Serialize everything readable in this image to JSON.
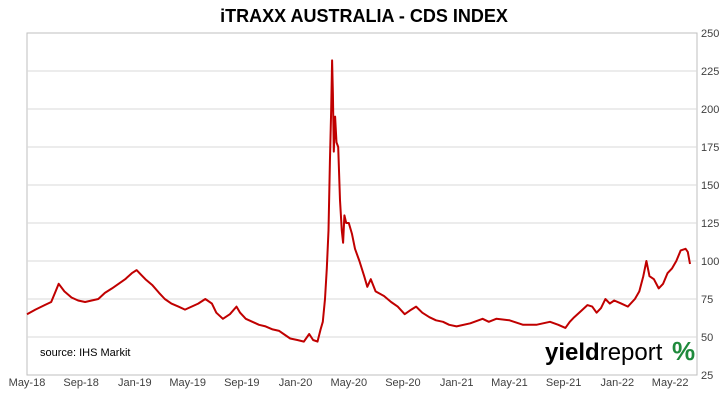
{
  "chart_data": {
    "type": "line",
    "title": "iTRAXX AUSTRALIA - CDS INDEX",
    "source_note": "source: IHS Markit",
    "logo": {
      "text_bold": "yield",
      "text_rest": "report",
      "symbol": "%"
    },
    "colors": {
      "line": "#c00000",
      "grid": "#d9d9d9",
      "text": "#404040",
      "logo_green": "#1f8a3c",
      "logo_red": "#c00000"
    },
    "x_axis": {
      "tick_labels": [
        "May-18",
        "Sep-18",
        "Jan-19",
        "May-19",
        "Sep-19",
        "Jan-20",
        "May-20",
        "Sep-20",
        "Jan-21",
        "May-21",
        "Sep-21",
        "Jan-22",
        "May-22"
      ],
      "range": [
        "2018-05-01",
        "2022-07-01"
      ]
    },
    "y_axis": {
      "position": "right",
      "tick_labels": [
        "25",
        "50",
        "75",
        "100",
        "125",
        "150",
        "175",
        "200",
        "225",
        "250"
      ],
      "range": [
        25,
        250
      ],
      "gridlines": true
    },
    "series": [
      {
        "values": [
          [
            "2018-05-01",
            65
          ],
          [
            "2018-05-20",
            68
          ],
          [
            "2018-06-10",
            71
          ],
          [
            "2018-06-25",
            73
          ],
          [
            "2018-07-05",
            80
          ],
          [
            "2018-07-12",
            85
          ],
          [
            "2018-07-25",
            80
          ],
          [
            "2018-08-10",
            76
          ],
          [
            "2018-08-25",
            74
          ],
          [
            "2018-09-10",
            73
          ],
          [
            "2018-09-25",
            74
          ],
          [
            "2018-10-10",
            75
          ],
          [
            "2018-10-25",
            79
          ],
          [
            "2018-11-10",
            82
          ],
          [
            "2018-11-25",
            85
          ],
          [
            "2018-12-10",
            88
          ],
          [
            "2018-12-25",
            92
          ],
          [
            "2019-01-05",
            94
          ],
          [
            "2019-01-15",
            91
          ],
          [
            "2019-01-25",
            88
          ],
          [
            "2019-02-10",
            84
          ],
          [
            "2019-02-25",
            79
          ],
          [
            "2019-03-10",
            75
          ],
          [
            "2019-03-25",
            72
          ],
          [
            "2019-04-10",
            70
          ],
          [
            "2019-04-25",
            68
          ],
          [
            "2019-05-10",
            70
          ],
          [
            "2019-05-25",
            72
          ],
          [
            "2019-06-10",
            75
          ],
          [
            "2019-06-25",
            72
          ],
          [
            "2019-07-05",
            66
          ],
          [
            "2019-07-20",
            62
          ],
          [
            "2019-08-05",
            65
          ],
          [
            "2019-08-20",
            70
          ],
          [
            "2019-08-28",
            66
          ],
          [
            "2019-09-10",
            62
          ],
          [
            "2019-09-25",
            60
          ],
          [
            "2019-10-10",
            58
          ],
          [
            "2019-10-25",
            57
          ],
          [
            "2019-11-10",
            55
          ],
          [
            "2019-11-25",
            54
          ],
          [
            "2019-12-10",
            51
          ],
          [
            "2019-12-20",
            49
          ],
          [
            "2020-01-05",
            48
          ],
          [
            "2020-01-20",
            47
          ],
          [
            "2020-02-01",
            52
          ],
          [
            "2020-02-10",
            48
          ],
          [
            "2020-02-20",
            47
          ],
          [
            "2020-02-27",
            55
          ],
          [
            "2020-03-03",
            60
          ],
          [
            "2020-03-08",
            75
          ],
          [
            "2020-03-12",
            95
          ],
          [
            "2020-03-16",
            120
          ],
          [
            "2020-03-19",
            165
          ],
          [
            "2020-03-22",
            200
          ],
          [
            "2020-03-24",
            232
          ],
          [
            "2020-03-26",
            210
          ],
          [
            "2020-03-28",
            172
          ],
          [
            "2020-03-31",
            195
          ],
          [
            "2020-04-03",
            178
          ],
          [
            "2020-04-07",
            175
          ],
          [
            "2020-04-11",
            140
          ],
          [
            "2020-04-15",
            120
          ],
          [
            "2020-04-18",
            112
          ],
          [
            "2020-04-21",
            130
          ],
          [
            "2020-04-25",
            125
          ],
          [
            "2020-05-01",
            125
          ],
          [
            "2020-05-08",
            118
          ],
          [
            "2020-05-15",
            108
          ],
          [
            "2020-05-25",
            100
          ],
          [
            "2020-06-05",
            90
          ],
          [
            "2020-06-12",
            83
          ],
          [
            "2020-06-20",
            88
          ],
          [
            "2020-07-01",
            80
          ],
          [
            "2020-07-20",
            77
          ],
          [
            "2020-08-05",
            73
          ],
          [
            "2020-08-20",
            70
          ],
          [
            "2020-09-05",
            65
          ],
          [
            "2020-09-20",
            68
          ],
          [
            "2020-10-01",
            70
          ],
          [
            "2020-10-15",
            66
          ],
          [
            "2020-10-31",
            63
          ],
          [
            "2020-11-15",
            61
          ],
          [
            "2020-12-01",
            60
          ],
          [
            "2020-12-15",
            58
          ],
          [
            "2021-01-01",
            57
          ],
          [
            "2021-02-01",
            59
          ],
          [
            "2021-03-01",
            62
          ],
          [
            "2021-03-15",
            60
          ],
          [
            "2021-04-01",
            62
          ],
          [
            "2021-05-01",
            61
          ],
          [
            "2021-06-01",
            58
          ],
          [
            "2021-07-01",
            58
          ],
          [
            "2021-08-01",
            60
          ],
          [
            "2021-08-20",
            58
          ],
          [
            "2021-09-05",
            56
          ],
          [
            "2021-09-15",
            60
          ],
          [
            "2021-09-25",
            63
          ],
          [
            "2021-10-10",
            67
          ],
          [
            "2021-10-25",
            71
          ],
          [
            "2021-11-05",
            70
          ],
          [
            "2021-11-15",
            66
          ],
          [
            "2021-11-25",
            69
          ],
          [
            "2021-12-05",
            75
          ],
          [
            "2021-12-15",
            72
          ],
          [
            "2021-12-25",
            74
          ],
          [
            "2022-01-10",
            72
          ],
          [
            "2022-01-25",
            70
          ],
          [
            "2022-02-10",
            75
          ],
          [
            "2022-02-20",
            80
          ],
          [
            "2022-03-01",
            90
          ],
          [
            "2022-03-08",
            100
          ],
          [
            "2022-03-15",
            90
          ],
          [
            "2022-03-25",
            88
          ],
          [
            "2022-04-05",
            82
          ],
          [
            "2022-04-15",
            85
          ],
          [
            "2022-04-25",
            92
          ],
          [
            "2022-05-05",
            95
          ],
          [
            "2022-05-15",
            100
          ],
          [
            "2022-05-25",
            107
          ],
          [
            "2022-06-05",
            108
          ],
          [
            "2022-06-10",
            106
          ],
          [
            "2022-06-15",
            98
          ]
        ]
      }
    ]
  }
}
